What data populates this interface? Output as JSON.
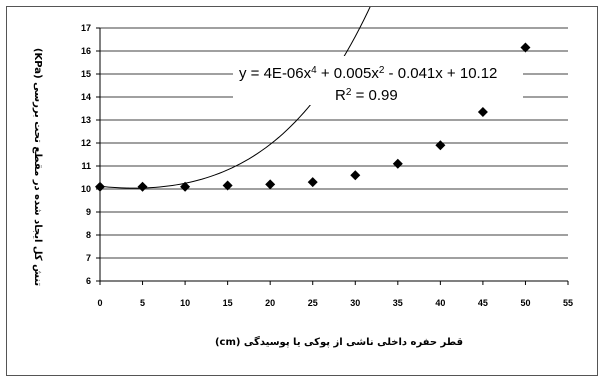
{
  "chart_data": {
    "type": "scatter",
    "title": "",
    "xlabel": "قطر حفره داخلی ناشی از پوکی یا پوسیدگی (cm)",
    "ylabel": "تنش کل ایجاد شده در مقطع تحت بررسی (KPa)",
    "xlim": [
      0,
      55
    ],
    "ylim": [
      6,
      17
    ],
    "x_ticks": [
      "0",
      "5",
      "10",
      "15",
      "20",
      "25",
      "30",
      "35",
      "40",
      "45",
      "50",
      "55"
    ],
    "y_ticks": [
      "6",
      "7",
      "8",
      "9",
      "10",
      "11",
      "12",
      "13",
      "14",
      "15",
      "16",
      "17"
    ],
    "grid": "horizontal",
    "legend": "none",
    "marker": "diamond",
    "marker_color": "#000000",
    "series": [
      {
        "x": [
          0,
          5,
          10,
          15,
          20,
          25,
          30,
          35,
          40,
          45,
          50
        ],
        "y": [
          10.1,
          10.1,
          10.1,
          10.15,
          10.2,
          10.3,
          10.6,
          11.1,
          11.9,
          13.35,
          16.15
        ]
      }
    ],
    "trendline": {
      "type": "polynomial",
      "coefficients": {
        "x4": 4e-06,
        "x2": 0.005,
        "x1": -0.041,
        "c": 10.12
      },
      "equation_prefix": "y = 4E-06x",
      "equation_exp1": "4",
      "equation_mid": " + 0.005x",
      "equation_exp2": "2",
      "equation_suffix": " - 0.041x + 10.12",
      "r2_prefix": "R",
      "r2_exp": "2",
      "r2_suffix": " = 0.99"
    }
  }
}
